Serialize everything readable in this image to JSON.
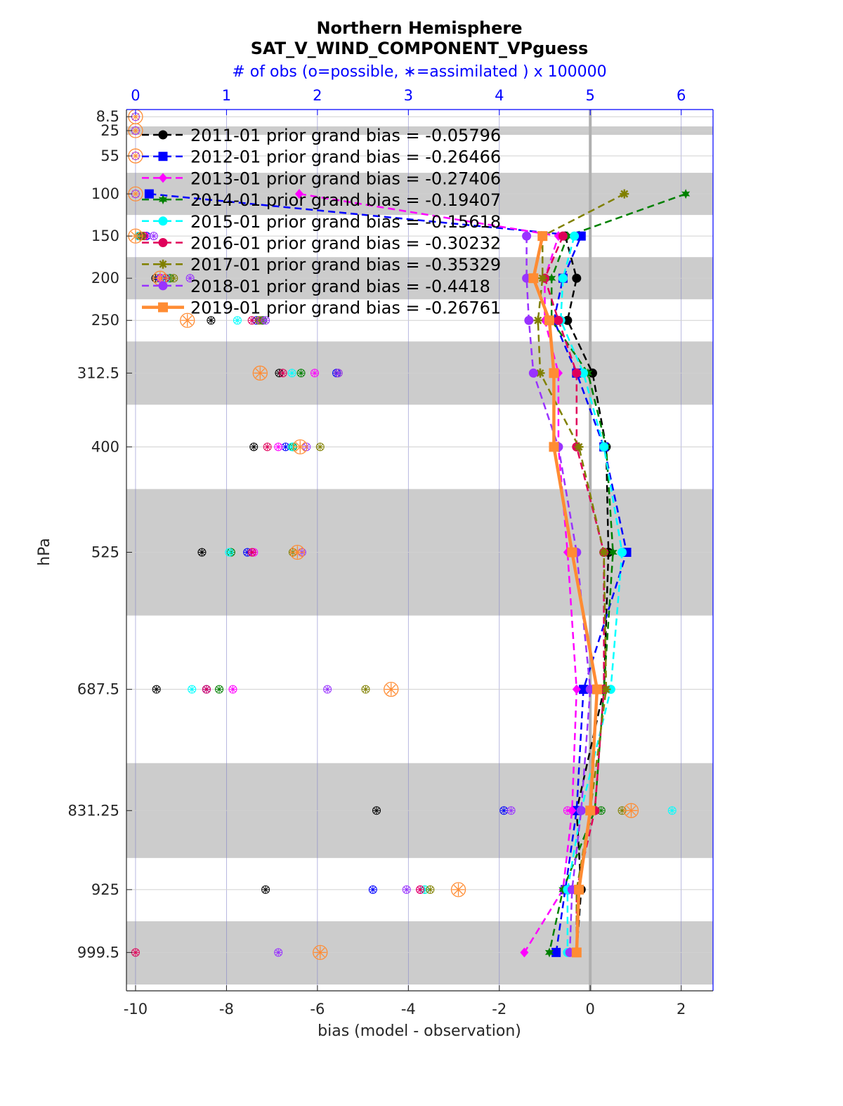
{
  "chart_data": {
    "type": "line",
    "title": "Northern Hemisphere",
    "subtitle": "SAT_V_WIND_COMPONENT_VPguess",
    "top_axis_label": "# of obs (o=possible, ∗=assimilated ) x 100000",
    "xlabel": "bias (model - observation)",
    "ylabel": "hPa",
    "xlim": [
      -10.2,
      2.7
    ],
    "x_ticks": [
      -10,
      -8,
      -6,
      -4,
      -2,
      0,
      2
    ],
    "top_xlim": [
      -0.1,
      6.35
    ],
    "top_ticks": [
      0,
      1,
      2,
      3,
      4,
      5,
      6
    ],
    "levels": [
      8.5,
      25,
      55,
      100,
      150,
      200,
      250,
      312.5,
      400,
      525,
      687.5,
      831.25,
      925,
      999.5
    ],
    "level_labels": [
      "8.5",
      "25",
      "55",
      "100",
      "150",
      "200",
      "250",
      "312.5",
      "400",
      "525",
      "687.5",
      "831.25",
      "925",
      "999.5"
    ],
    "ylim": [
      0,
      1045
    ],
    "shaded_bands": [
      [
        20,
        30
      ],
      [
        75,
        125
      ],
      [
        175,
        225
      ],
      [
        275,
        350
      ],
      [
        450,
        600
      ],
      [
        775,
        887.5
      ],
      [
        962.5,
        1037.5
      ]
    ],
    "zero_line": 0,
    "grid": true,
    "legend_position": "top-left",
    "series": [
      {
        "name": "2011-01 prior grand bias = -0.05796",
        "color": "#000000",
        "marker": "circle",
        "linestyle": "dashed",
        "levels": [
          150,
          200,
          250,
          312.5,
          400,
          525,
          687.5,
          831.25,
          925,
          999.5
        ],
        "bias": [
          -0.55,
          -0.3,
          -0.5,
          0.05,
          0.35,
          0.4,
          0.3,
          -0.3,
          -0.2,
          -0.3
        ],
        "obs_possible": [
          0.05,
          0.22,
          0.83,
          1.58,
          1.3,
          0.73,
          0.23,
          2.65,
          1.43,
          null
        ],
        "obs_assimilated": [
          0.05,
          0.22,
          0.83,
          1.58,
          1.3,
          0.73,
          0.23,
          2.65,
          1.43,
          null
        ]
      },
      {
        "name": "2012-01 prior grand bias = -0.26466",
        "color": "#0000ff",
        "marker": "square",
        "linestyle": "dashed",
        "levels": [
          100,
          150,
          200,
          250,
          312.5,
          400,
          525,
          687.5,
          831.25,
          925,
          999.5
        ],
        "bias": [
          -9.7,
          -0.2,
          -0.6,
          -0.8,
          -0.3,
          0.3,
          0.8,
          -0.15,
          -0.3,
          -0.55,
          -0.75
        ],
        "obs_possible": [
          null,
          0.12,
          0.27,
          1.33,
          2.21,
          1.65,
          1.23,
          0.78,
          4.05,
          2.61,
          null
        ],
        "obs_assimilated": [
          null,
          0.12,
          0.27,
          1.33,
          2.21,
          1.65,
          1.23,
          0.78,
          4.05,
          2.61,
          null
        ]
      },
      {
        "name": "2013-01 prior grand bias = -0.27406",
        "color": "#ff00ff",
        "marker": "diamond",
        "linestyle": "dashed",
        "levels": [
          100,
          150,
          200,
          250,
          312.5,
          400,
          525,
          687.5,
          831.25,
          925,
          999.5
        ],
        "bias": [
          -6.4,
          -0.7,
          -1.0,
          -1.0,
          -0.7,
          -0.7,
          -0.5,
          -0.3,
          -0.4,
          -0.6,
          -1.45
        ],
        "obs_possible": [
          null,
          0.1,
          0.28,
          1.38,
          1.97,
          1.57,
          1.3,
          1.07,
          4.75,
          3.13,
          null
        ],
        "obs_assimilated": [
          null,
          0.1,
          0.28,
          1.38,
          1.97,
          1.57,
          1.3,
          1.07,
          4.75,
          3.13,
          null
        ]
      },
      {
        "name": "2014-01 prior grand bias = -0.19407",
        "color": "#008000",
        "marker": "hexagram",
        "linestyle": "dashed",
        "levels": [
          100,
          150,
          200,
          250,
          312.5,
          400,
          525,
          687.5,
          831.25,
          925,
          999.5
        ],
        "bias": [
          2.1,
          -0.5,
          -0.85,
          -0.85,
          -0.05,
          0.35,
          0.5,
          0.3,
          0.1,
          -0.6,
          -0.9
        ],
        "obs_possible": [
          null,
          0.06,
          0.38,
          1.4,
          1.82,
          1.73,
          1.05,
          0.92,
          5.12,
          3.18,
          null
        ],
        "obs_assimilated": [
          null,
          0.06,
          0.38,
          1.4,
          1.82,
          1.73,
          1.05,
          0.92,
          5.12,
          3.18,
          null
        ]
      },
      {
        "name": "2015-01 prior grand bias = -0.15618",
        "color": "#00ffff",
        "marker": "circle",
        "linestyle": "dashed",
        "levels": [
          150,
          200,
          250,
          312.5,
          400,
          525,
          687.5,
          831.25,
          925,
          999.5
        ],
        "bias": [
          -0.35,
          -0.6,
          -0.65,
          -0.15,
          0.3,
          0.7,
          0.45,
          -0.2,
          -0.5,
          -0.5
        ],
        "obs_possible": [
          0.03,
          0.34,
          1.12,
          1.72,
          1.72,
          1.03,
          0.62,
          5.9,
          3.18,
          null
        ],
        "obs_assimilated": [
          0.03,
          0.34,
          1.12,
          1.72,
          1.72,
          1.03,
          0.62,
          5.9,
          3.18,
          null
        ]
      },
      {
        "name": "2016-01 prior grand bias = -0.30232",
        "color": "#e0005a",
        "marker": "circle",
        "linestyle": "dashed",
        "levels": [
          150,
          200,
          250,
          312.5,
          400,
          525,
          687.5,
          831.25,
          925,
          999.5
        ],
        "bias": [
          -0.6,
          -1.0,
          -0.7,
          -0.3,
          -0.3,
          0.3,
          0.3,
          0.1,
          -0.3,
          -0.3
        ],
        "obs_possible": [
          0.09,
          0.33,
          1.28,
          1.62,
          1.45,
          1.28,
          0.78,
          5.05,
          3.13,
          0.0
        ],
        "obs_assimilated": [
          0.09,
          0.33,
          1.28,
          1.62,
          1.45,
          1.28,
          0.78,
          5.05,
          3.13,
          0.0
        ]
      },
      {
        "name": "2017-01 prior grand bias = -0.35329",
        "color": "#808000",
        "marker": "asterisk",
        "linestyle": "dashed",
        "levels": [
          100,
          150,
          200,
          250,
          312.5,
          400,
          525,
          687.5,
          831.25,
          925,
          999.5
        ],
        "bias": [
          0.75,
          -1.05,
          -1.05,
          -1.15,
          -1.1,
          -0.25,
          0.3,
          0.35,
          0.0,
          -0.3,
          -0.3
        ],
        "obs_possible": [
          null,
          0.07,
          0.42,
          1.36,
          2.23,
          2.03,
          1.73,
          2.53,
          5.35,
          3.24,
          null
        ],
        "obs_assimilated": [
          null,
          0.07,
          0.42,
          1.36,
          2.23,
          2.03,
          1.73,
          2.53,
          5.35,
          3.24,
          null
        ]
      },
      {
        "name": "2018-01 prior grand bias = -0.4418",
        "color": "#9933ff",
        "marker": "circle",
        "linestyle": "dashed",
        "levels": [
          150,
          200,
          250,
          312.5,
          400,
          525,
          687.5,
          831.25,
          925,
          999.5
        ],
        "bias": [
          -1.4,
          -1.4,
          -1.35,
          -1.25,
          -0.7,
          -0.3,
          0.0,
          -0.2,
          -0.4,
          -0.45
        ],
        "obs_possible": [
          0.2,
          0.6,
          1.43,
          2.23,
          1.88,
          1.83,
          2.11,
          4.13,
          2.98,
          1.57
        ],
        "obs_assimilated": [
          0.2,
          0.6,
          1.43,
          2.23,
          1.88,
          1.83,
          2.11,
          4.13,
          2.98,
          1.57
        ]
      },
      {
        "name": "2019-01 prior grand bias = -0.26761",
        "color": "#ff8c33",
        "marker": "square",
        "linestyle": "solid",
        "levels": [
          150,
          200,
          250,
          312.5,
          400,
          525,
          687.5,
          831.25,
          925,
          999.5
        ],
        "bias": [
          -1.05,
          -1.25,
          -0.9,
          -0.8,
          -0.8,
          -0.4,
          0.15,
          0.0,
          -0.25,
          -0.3
        ],
        "obs_possible": [
          0.0,
          0.27,
          0.57,
          1.37,
          1.81,
          1.78,
          2.81,
          5.45,
          3.55,
          2.03
        ],
        "obs_assimilated": [
          0.0,
          0.27,
          0.57,
          1.37,
          1.81,
          1.78,
          2.81,
          5.45,
          3.55,
          2.03
        ]
      }
    ]
  }
}
